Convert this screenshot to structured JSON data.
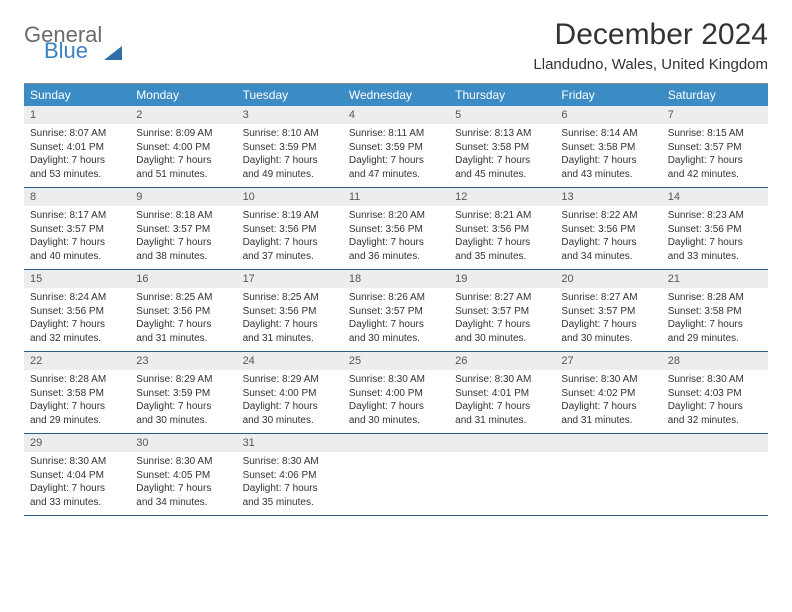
{
  "logo": {
    "general": "General",
    "blue": "Blue"
  },
  "title": "December 2024",
  "location": "Llandudno, Wales, United Kingdom",
  "colors": {
    "header_bg": "#3b8bc4",
    "header_text": "#ffffff",
    "daynum_bg": "#eceeee",
    "daynum_text": "#555555",
    "body_text": "#333333",
    "row_border": "#2b5d86",
    "logo_gray": "#6b6b6b",
    "logo_blue": "#3b82c4"
  },
  "weekdays": [
    "Sunday",
    "Monday",
    "Tuesday",
    "Wednesday",
    "Thursday",
    "Friday",
    "Saturday"
  ],
  "weeks": [
    [
      {
        "n": "1",
        "sr": "8:07 AM",
        "ss": "4:01 PM",
        "dl": "7 hours and 53 minutes."
      },
      {
        "n": "2",
        "sr": "8:09 AM",
        "ss": "4:00 PM",
        "dl": "7 hours and 51 minutes."
      },
      {
        "n": "3",
        "sr": "8:10 AM",
        "ss": "3:59 PM",
        "dl": "7 hours and 49 minutes."
      },
      {
        "n": "4",
        "sr": "8:11 AM",
        "ss": "3:59 PM",
        "dl": "7 hours and 47 minutes."
      },
      {
        "n": "5",
        "sr": "8:13 AM",
        "ss": "3:58 PM",
        "dl": "7 hours and 45 minutes."
      },
      {
        "n": "6",
        "sr": "8:14 AM",
        "ss": "3:58 PM",
        "dl": "7 hours and 43 minutes."
      },
      {
        "n": "7",
        "sr": "8:15 AM",
        "ss": "3:57 PM",
        "dl": "7 hours and 42 minutes."
      }
    ],
    [
      {
        "n": "8",
        "sr": "8:17 AM",
        "ss": "3:57 PM",
        "dl": "7 hours and 40 minutes."
      },
      {
        "n": "9",
        "sr": "8:18 AM",
        "ss": "3:57 PM",
        "dl": "7 hours and 38 minutes."
      },
      {
        "n": "10",
        "sr": "8:19 AM",
        "ss": "3:56 PM",
        "dl": "7 hours and 37 minutes."
      },
      {
        "n": "11",
        "sr": "8:20 AM",
        "ss": "3:56 PM",
        "dl": "7 hours and 36 minutes."
      },
      {
        "n": "12",
        "sr": "8:21 AM",
        "ss": "3:56 PM",
        "dl": "7 hours and 35 minutes."
      },
      {
        "n": "13",
        "sr": "8:22 AM",
        "ss": "3:56 PM",
        "dl": "7 hours and 34 minutes."
      },
      {
        "n": "14",
        "sr": "8:23 AM",
        "ss": "3:56 PM",
        "dl": "7 hours and 33 minutes."
      }
    ],
    [
      {
        "n": "15",
        "sr": "8:24 AM",
        "ss": "3:56 PM",
        "dl": "7 hours and 32 minutes."
      },
      {
        "n": "16",
        "sr": "8:25 AM",
        "ss": "3:56 PM",
        "dl": "7 hours and 31 minutes."
      },
      {
        "n": "17",
        "sr": "8:25 AM",
        "ss": "3:56 PM",
        "dl": "7 hours and 31 minutes."
      },
      {
        "n": "18",
        "sr": "8:26 AM",
        "ss": "3:57 PM",
        "dl": "7 hours and 30 minutes."
      },
      {
        "n": "19",
        "sr": "8:27 AM",
        "ss": "3:57 PM",
        "dl": "7 hours and 30 minutes."
      },
      {
        "n": "20",
        "sr": "8:27 AM",
        "ss": "3:57 PM",
        "dl": "7 hours and 30 minutes."
      },
      {
        "n": "21",
        "sr": "8:28 AM",
        "ss": "3:58 PM",
        "dl": "7 hours and 29 minutes."
      }
    ],
    [
      {
        "n": "22",
        "sr": "8:28 AM",
        "ss": "3:58 PM",
        "dl": "7 hours and 29 minutes."
      },
      {
        "n": "23",
        "sr": "8:29 AM",
        "ss": "3:59 PM",
        "dl": "7 hours and 30 minutes."
      },
      {
        "n": "24",
        "sr": "8:29 AM",
        "ss": "4:00 PM",
        "dl": "7 hours and 30 minutes."
      },
      {
        "n": "25",
        "sr": "8:30 AM",
        "ss": "4:00 PM",
        "dl": "7 hours and 30 minutes."
      },
      {
        "n": "26",
        "sr": "8:30 AM",
        "ss": "4:01 PM",
        "dl": "7 hours and 31 minutes."
      },
      {
        "n": "27",
        "sr": "8:30 AM",
        "ss": "4:02 PM",
        "dl": "7 hours and 31 minutes."
      },
      {
        "n": "28",
        "sr": "8:30 AM",
        "ss": "4:03 PM",
        "dl": "7 hours and 32 minutes."
      }
    ],
    [
      {
        "n": "29",
        "sr": "8:30 AM",
        "ss": "4:04 PM",
        "dl": "7 hours and 33 minutes."
      },
      {
        "n": "30",
        "sr": "8:30 AM",
        "ss": "4:05 PM",
        "dl": "7 hours and 34 minutes."
      },
      {
        "n": "31",
        "sr": "8:30 AM",
        "ss": "4:06 PM",
        "dl": "7 hours and 35 minutes."
      },
      null,
      null,
      null,
      null
    ]
  ],
  "labels": {
    "sunrise": "Sunrise:",
    "sunset": "Sunset:",
    "daylight": "Daylight:"
  }
}
